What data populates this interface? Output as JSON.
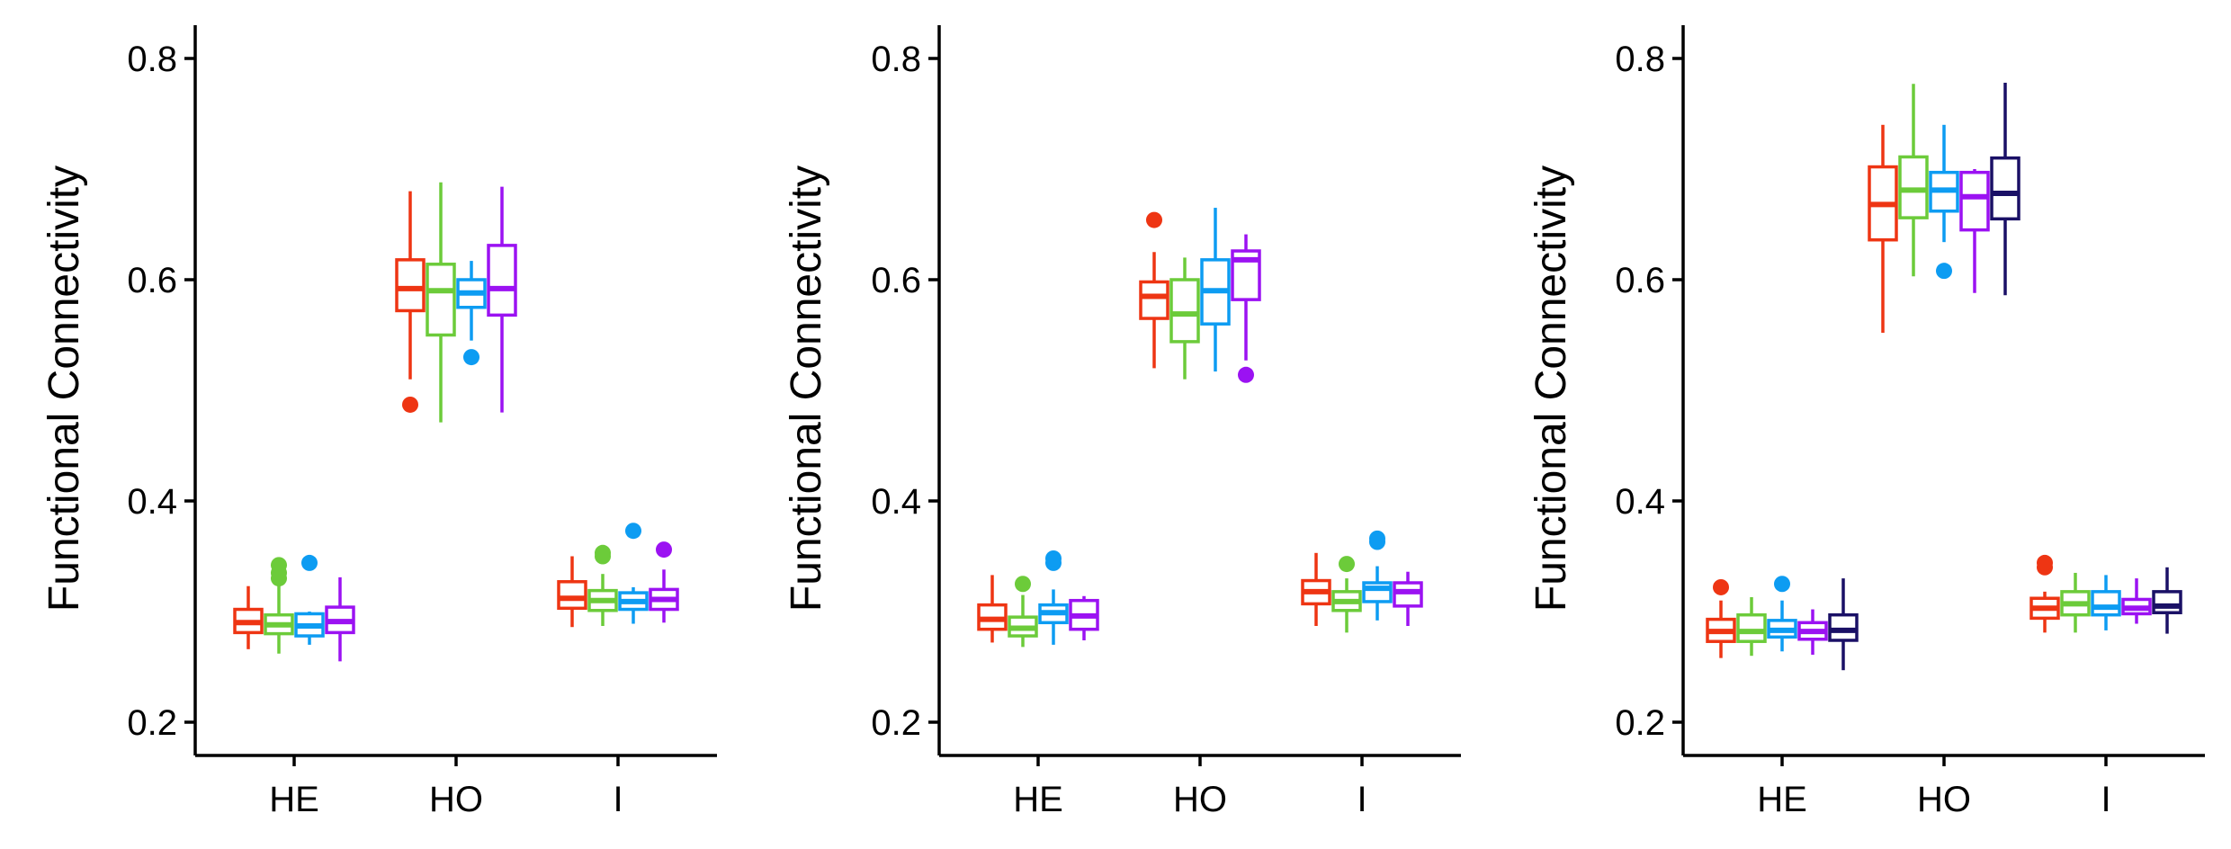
{
  "chart_data": [
    {
      "type": "box",
      "ylabel": "Functional Connectivity",
      "categories": [
        "HE",
        "HO",
        "I"
      ],
      "ylim": [
        0.17,
        0.83
      ],
      "yticks": [
        "0.2",
        "0.4",
        "0.6",
        "0.8"
      ],
      "series_colors": [
        "#ee3513",
        "#6ccb3a",
        "#0d9cf2",
        "#9b12f2"
      ],
      "groups": [
        {
          "category": "HE",
          "boxes": [
            {
              "min": 0.266,
              "q1": 0.281,
              "median": 0.29,
              "q3": 0.302,
              "max": 0.323,
              "outliers": []
            },
            {
              "min": 0.262,
              "q1": 0.28,
              "median": 0.288,
              "q3": 0.297,
              "max": 0.325,
              "outliers": [
                0.33,
                0.335,
                0.342
              ]
            },
            {
              "min": 0.27,
              "q1": 0.278,
              "median": 0.287,
              "q3": 0.298,
              "max": 0.3,
              "outliers": [
                0.344
              ]
            },
            {
              "min": 0.255,
              "q1": 0.281,
              "median": 0.291,
              "q3": 0.304,
              "max": 0.331,
              "outliers": []
            }
          ]
        },
        {
          "category": "HO",
          "boxes": [
            {
              "min": 0.51,
              "q1": 0.572,
              "median": 0.592,
              "q3": 0.618,
              "max": 0.68,
              "outliers": [
                0.487
              ]
            },
            {
              "min": 0.471,
              "q1": 0.55,
              "median": 0.59,
              "q3": 0.614,
              "max": 0.688,
              "outliers": []
            },
            {
              "min": 0.545,
              "q1": 0.575,
              "median": 0.588,
              "q3": 0.6,
              "max": 0.617,
              "outliers": [
                0.53
              ]
            },
            {
              "min": 0.48,
              "q1": 0.568,
              "median": 0.592,
              "q3": 0.631,
              "max": 0.684,
              "outliers": []
            }
          ]
        },
        {
          "category": "I",
          "boxes": [
            {
              "min": 0.286,
              "q1": 0.303,
              "median": 0.312,
              "q3": 0.327,
              "max": 0.35,
              "outliers": []
            },
            {
              "min": 0.287,
              "q1": 0.301,
              "median": 0.31,
              "q3": 0.319,
              "max": 0.334,
              "outliers": [
                0.35,
                0.353
              ]
            },
            {
              "min": 0.289,
              "q1": 0.302,
              "median": 0.309,
              "q3": 0.317,
              "max": 0.322,
              "outliers": [
                0.373
              ]
            },
            {
              "min": 0.29,
              "q1": 0.302,
              "median": 0.311,
              "q3": 0.32,
              "max": 0.338,
              "outliers": [
                0.356
              ]
            }
          ]
        }
      ]
    },
    {
      "type": "box",
      "ylabel": "Functional Connectivity",
      "categories": [
        "HE",
        "HO",
        "I"
      ],
      "ylim": [
        0.17,
        0.83
      ],
      "yticks": [
        "0.2",
        "0.4",
        "0.6",
        "0.8"
      ],
      "series_colors": [
        "#ee3513",
        "#6ccb3a",
        "#0d9cf2",
        "#9b12f2"
      ],
      "groups": [
        {
          "category": "HE",
          "boxes": [
            {
              "min": 0.272,
              "q1": 0.284,
              "median": 0.293,
              "q3": 0.306,
              "max": 0.333,
              "outliers": []
            },
            {
              "min": 0.268,
              "q1": 0.278,
              "median": 0.285,
              "q3": 0.295,
              "max": 0.315,
              "outliers": [
                0.325
              ]
            },
            {
              "min": 0.27,
              "q1": 0.29,
              "median": 0.299,
              "q3": 0.306,
              "max": 0.32,
              "outliers": [
                0.344,
                0.348
              ]
            },
            {
              "min": 0.274,
              "q1": 0.284,
              "median": 0.296,
              "q3": 0.31,
              "max": 0.314,
              "outliers": []
            }
          ]
        },
        {
          "category": "HO",
          "boxes": [
            {
              "min": 0.52,
              "q1": 0.565,
              "median": 0.585,
              "q3": 0.598,
              "max": 0.625,
              "outliers": [
                0.654
              ]
            },
            {
              "min": 0.51,
              "q1": 0.544,
              "median": 0.569,
              "q3": 0.6,
              "max": 0.62,
              "outliers": []
            },
            {
              "min": 0.517,
              "q1": 0.56,
              "median": 0.59,
              "q3": 0.618,
              "max": 0.665,
              "outliers": []
            },
            {
              "min": 0.527,
              "q1": 0.582,
              "median": 0.618,
              "q3": 0.626,
              "max": 0.641,
              "outliers": [
                0.514
              ]
            }
          ]
        },
        {
          "category": "I",
          "boxes": [
            {
              "min": 0.287,
              "q1": 0.307,
              "median": 0.318,
              "q3": 0.328,
              "max": 0.353,
              "outliers": []
            },
            {
              "min": 0.281,
              "q1": 0.301,
              "median": 0.309,
              "q3": 0.318,
              "max": 0.33,
              "outliers": [
                0.343
              ]
            },
            {
              "min": 0.292,
              "q1": 0.309,
              "median": 0.321,
              "q3": 0.326,
              "max": 0.341,
              "outliers": [
                0.363,
                0.366
              ]
            },
            {
              "min": 0.287,
              "q1": 0.305,
              "median": 0.318,
              "q3": 0.326,
              "max": 0.336,
              "outliers": []
            }
          ]
        }
      ]
    },
    {
      "type": "box",
      "ylabel": "Functional Connectivity",
      "categories": [
        "HE",
        "HO",
        "I"
      ],
      "ylim": [
        0.17,
        0.83
      ],
      "yticks": [
        "0.2",
        "0.4",
        "0.6",
        "0.8"
      ],
      "series_colors": [
        "#ee3513",
        "#6ccb3a",
        "#0d9cf2",
        "#9b12f2",
        "#1a1066"
      ],
      "groups": [
        {
          "category": "HE",
          "boxes": [
            {
              "min": 0.258,
              "q1": 0.273,
              "median": 0.282,
              "q3": 0.293,
              "max": 0.31,
              "outliers": [
                0.322
              ]
            },
            {
              "min": 0.26,
              "q1": 0.273,
              "median": 0.282,
              "q3": 0.297,
              "max": 0.313,
              "outliers": []
            },
            {
              "min": 0.264,
              "q1": 0.277,
              "median": 0.283,
              "q3": 0.292,
              "max": 0.31,
              "outliers": [
                0.325
              ]
            },
            {
              "min": 0.261,
              "q1": 0.275,
              "median": 0.282,
              "q3": 0.29,
              "max": 0.302,
              "outliers": []
            },
            {
              "min": 0.247,
              "q1": 0.274,
              "median": 0.283,
              "q3": 0.297,
              "max": 0.33,
              "outliers": []
            }
          ]
        },
        {
          "category": "HO",
          "boxes": [
            {
              "min": 0.552,
              "q1": 0.636,
              "median": 0.668,
              "q3": 0.702,
              "max": 0.74,
              "outliers": []
            },
            {
              "min": 0.603,
              "q1": 0.656,
              "median": 0.681,
              "q3": 0.711,
              "max": 0.777,
              "outliers": []
            },
            {
              "min": 0.634,
              "q1": 0.662,
              "median": 0.681,
              "q3": 0.697,
              "max": 0.74,
              "outliers": [
                0.608
              ]
            },
            {
              "min": 0.588,
              "q1": 0.645,
              "median": 0.675,
              "q3": 0.697,
              "max": 0.7,
              "outliers": []
            },
            {
              "min": 0.586,
              "q1": 0.655,
              "median": 0.678,
              "q3": 0.71,
              "max": 0.778,
              "outliers": []
            }
          ]
        },
        {
          "category": "I",
          "boxes": [
            {
              "min": 0.281,
              "q1": 0.294,
              "median": 0.303,
              "q3": 0.312,
              "max": 0.318,
              "outliers": [
                0.34,
                0.344
              ]
            },
            {
              "min": 0.281,
              "q1": 0.297,
              "median": 0.307,
              "q3": 0.318,
              "max": 0.335,
              "outliers": []
            },
            {
              "min": 0.283,
              "q1": 0.297,
              "median": 0.304,
              "q3": 0.318,
              "max": 0.333,
              "outliers": []
            },
            {
              "min": 0.289,
              "q1": 0.298,
              "median": 0.303,
              "q3": 0.311,
              "max": 0.33,
              "outliers": []
            },
            {
              "min": 0.28,
              "q1": 0.299,
              "median": 0.305,
              "q3": 0.318,
              "max": 0.34,
              "outliers": []
            }
          ]
        }
      ]
    }
  ]
}
